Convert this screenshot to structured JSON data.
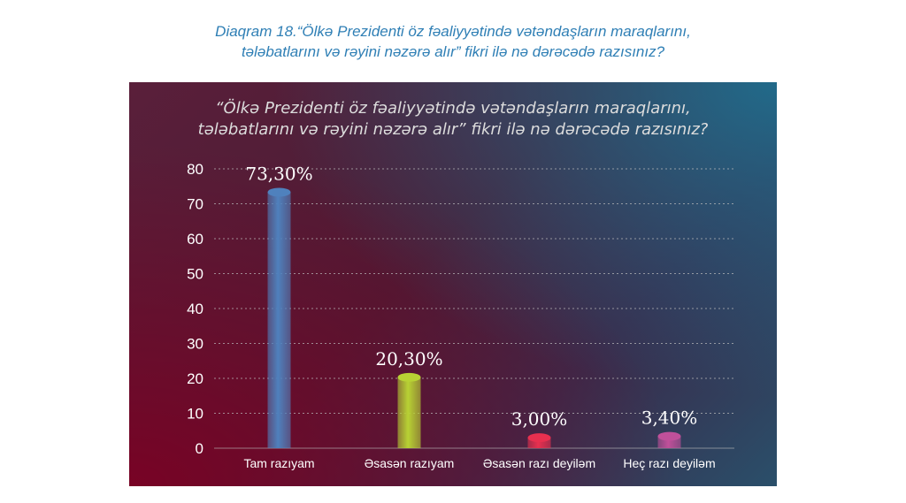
{
  "caption": {
    "line1": "Diaqram 18.“Ölkə Prezidenti öz fəaliyyətində vətəndaşların maraqlarını,",
    "line2": "tələbatlarını və rəyini nəzərə alır” fikri ilə nə dərəcədə razısınız?"
  },
  "chart_data": {
    "type": "bar",
    "title_line1": "“Ölkə Prezidenti öz fəaliyyətində vətəndaşların maraqlarını,",
    "title_line2": "tələbatlarını və rəyini nəzərə alır” fikri ilə nə dərəcədə razısınız?",
    "categories": [
      "Tam razıyam",
      "Əsasən razıyam",
      "Əsasən razı deyiləm",
      "Heç razı deyiləm"
    ],
    "values": [
      73.3,
      20.3,
      3.0,
      3.4
    ],
    "data_labels": [
      "73,30%",
      "20,30%",
      "3,00%",
      "3,40%"
    ],
    "colors": [
      "#4f81bd",
      "#b8d234",
      "#e8304f",
      "#c0509a"
    ],
    "ylim": [
      0,
      80
    ],
    "yticks": [
      0,
      10,
      20,
      30,
      40,
      50,
      60,
      70,
      80
    ],
    "grid": true
  }
}
